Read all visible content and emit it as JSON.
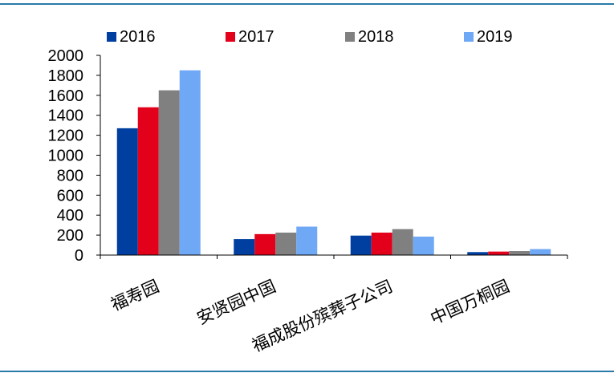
{
  "chart_data": {
    "type": "bar",
    "categories": [
      "福寿园",
      "安贤园中国",
      "福成股份殡葬子公司",
      "中国万桐园"
    ],
    "series": [
      {
        "name": "2016",
        "color": "#003f9f",
        "values": [
          1270,
          160,
          195,
          30
        ]
      },
      {
        "name": "2017",
        "color": "#e3001b",
        "values": [
          1480,
          210,
          225,
          35
        ]
      },
      {
        "name": "2018",
        "color": "#808080",
        "values": [
          1650,
          225,
          260,
          40
        ]
      },
      {
        "name": "2019",
        "color": "#6fa8f5",
        "values": [
          1850,
          285,
          185,
          60
        ]
      }
    ],
    "ylim": [
      0,
      2000
    ],
    "yticks": [
      "0",
      "200",
      "400",
      "600",
      "800",
      "1000",
      "1200",
      "1400",
      "1600",
      "1800",
      "2000"
    ],
    "grid": false,
    "legend": "top"
  }
}
